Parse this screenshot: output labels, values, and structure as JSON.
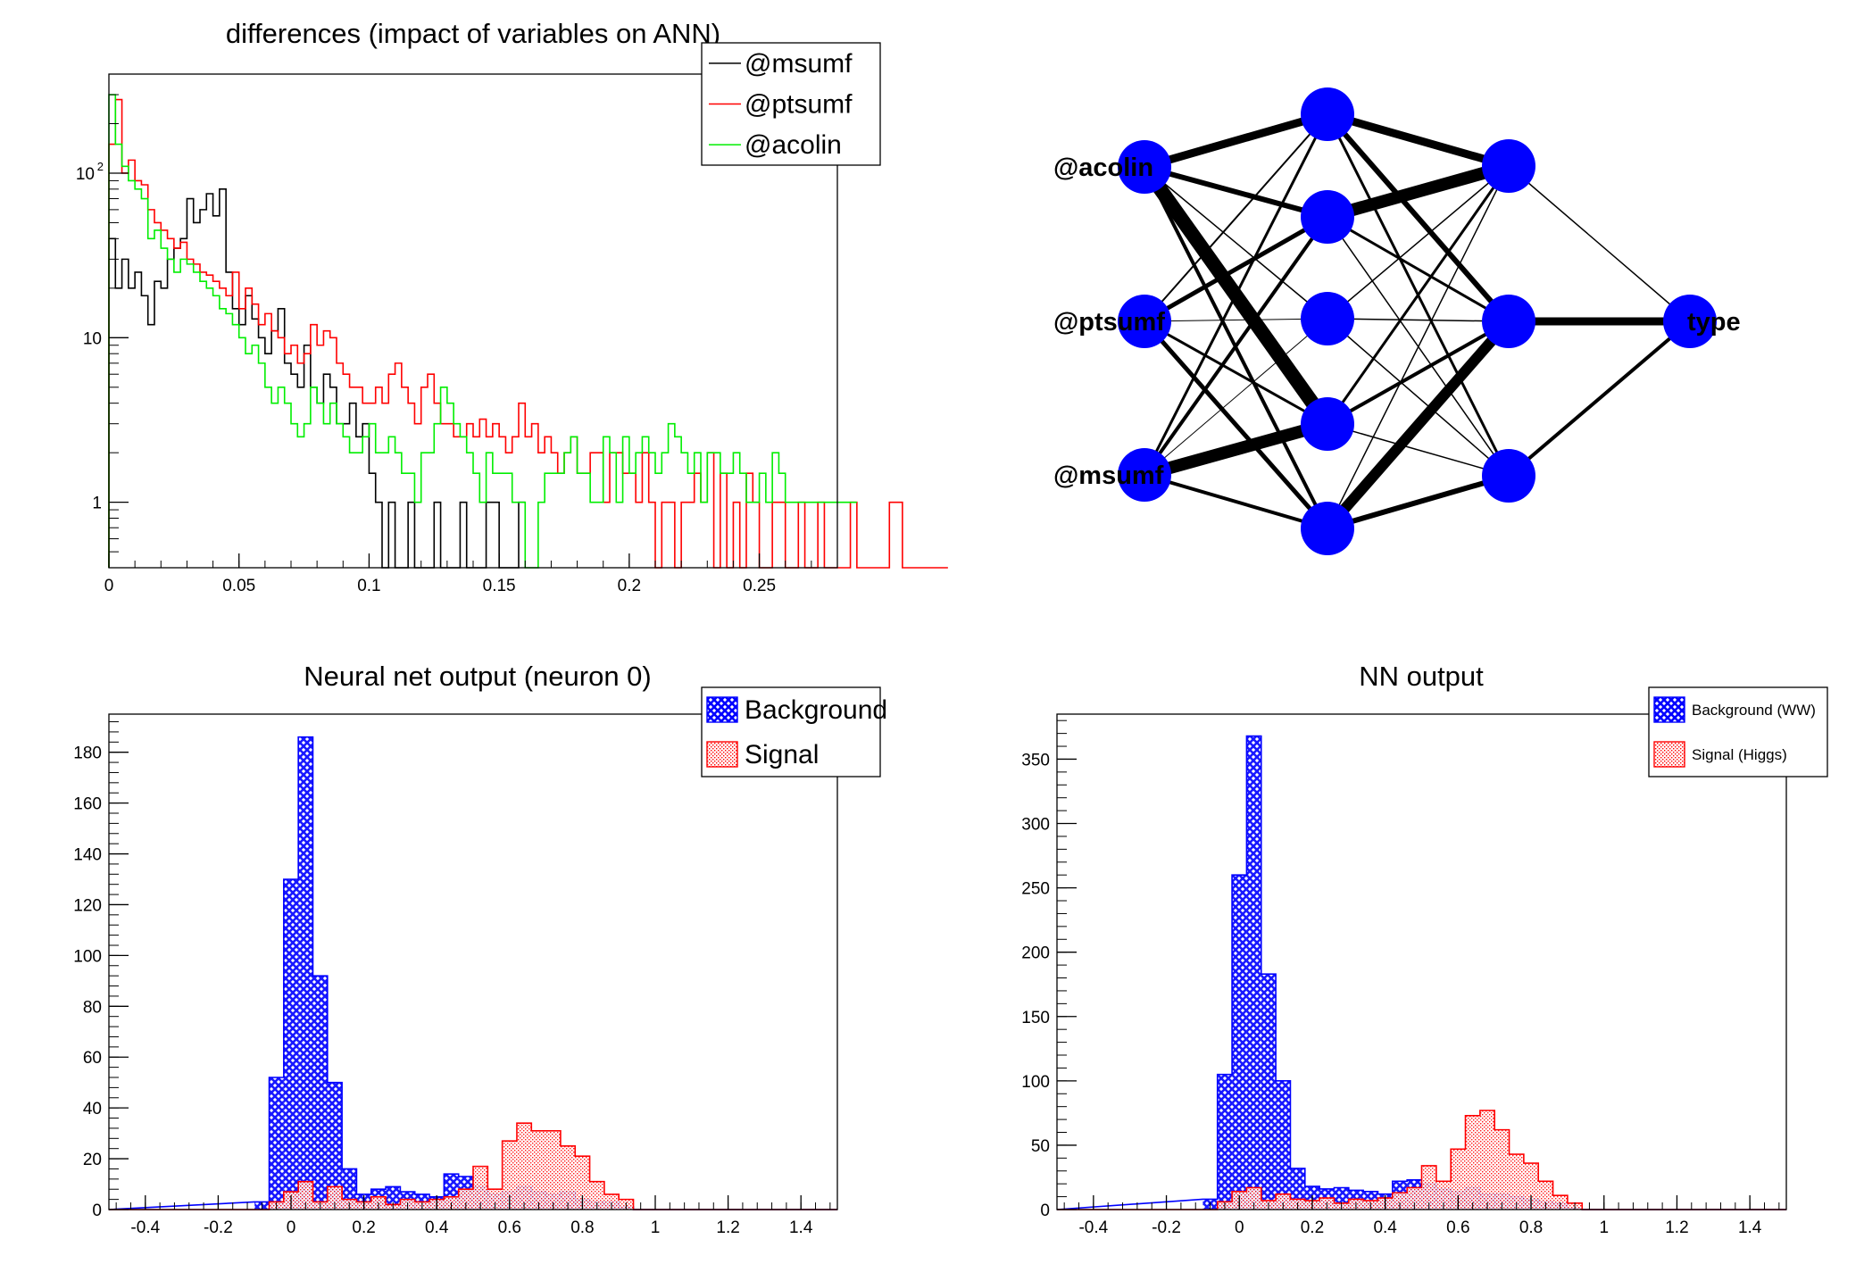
{
  "colors": {
    "msumf": "#000000",
    "ptsumf": "#ff0000",
    "acolin": "#00ee00",
    "background": "#0000ff",
    "signal": "#ff0000",
    "node": "#0000ff"
  },
  "chart_data": [
    {
      "id": "differences",
      "type": "histogram-step",
      "title": "differences (impact of variables on ANN)",
      "log_y": true,
      "xlim": [
        0,
        0.28
      ],
      "ylim": [
        0.4,
        400
      ],
      "x_ticks": [
        0,
        0.05,
        0.1,
        0.15,
        0.2,
        0.25
      ],
      "x_tick_labels": [
        "0",
        "0.05",
        "0.1",
        "0.15",
        "0.2",
        "0.25"
      ],
      "y_ticks": [
        1,
        10,
        100
      ],
      "y_tick_labels": [
        "1",
        "10",
        "10²"
      ],
      "legend": [
        "@msumf",
        "@ptsumf",
        "@acolin"
      ],
      "bin_width": 0.0025,
      "series": [
        {
          "name": "@msumf",
          "key": "msumf",
          "x_start": 0,
          "values": [
            40,
            20,
            30,
            20,
            25,
            18,
            12,
            22,
            20,
            30,
            35,
            40,
            70,
            50,
            60,
            75,
            55,
            80,
            25,
            15,
            12,
            18,
            13,
            10,
            8,
            11,
            15,
            7,
            6,
            5,
            9,
            5,
            4,
            6,
            5,
            3,
            3,
            4,
            2.5,
            3,
            1.5,
            1,
            0.4,
            1,
            0.4,
            0.4,
            1,
            0.4,
            0.4,
            0.4,
            1,
            0.4,
            0.4,
            0.4,
            1,
            0.4,
            0.4,
            0.4,
            1,
            1,
            0.4,
            0.4,
            0.4,
            1
          ]
        },
        {
          "name": "@ptsumf",
          "key": "ptsumf",
          "x_start": 0,
          "values": [
            150,
            280,
            100,
            120,
            90,
            85,
            60,
            50,
            45,
            40,
            35,
            38,
            30,
            28,
            25,
            24,
            22,
            20,
            18,
            25,
            15,
            20,
            16,
            12,
            14,
            11,
            10,
            8,
            9,
            7,
            8,
            12,
            9,
            11,
            10,
            7,
            6,
            5,
            5,
            4,
            4,
            5,
            4,
            6,
            7,
            5,
            4,
            3,
            5,
            6,
            4,
            3,
            3,
            2.5,
            2.5,
            3,
            2.5,
            3.2,
            2.5,
            3,
            2.5,
            2,
            2.5,
            4,
            2.5,
            3,
            2,
            2.5,
            2,
            1.5,
            2,
            2.5,
            1.5,
            1.5,
            2,
            2,
            1,
            2,
            2,
            1.5,
            1.5,
            1,
            2,
            1,
            0.4,
            1,
            1,
            0.4,
            1,
            1,
            1.5,
            1,
            2,
            0.4,
            1.5,
            0.4,
            1,
            0.4,
            1.5,
            1,
            0.4,
            0.4,
            1,
            1,
            0.4,
            0.4,
            1,
            0.4,
            0.4,
            1,
            0.4,
            0.4,
            0.4,
            0.4,
            1,
            0.4,
            0.4,
            0.4,
            0.4,
            0.4,
            1,
            1,
            0.4,
            0.4,
            0.4,
            0.4,
            0.4,
            0.4,
            0.4
          ]
        },
        {
          "name": "@acolin",
          "key": "acolin",
          "x_start": 0,
          "values": [
            300,
            150,
            110,
            90,
            80,
            70,
            40,
            45,
            35,
            30,
            25,
            30,
            28,
            25,
            22,
            20,
            18,
            15,
            14,
            12,
            10,
            8,
            9,
            7,
            5,
            4,
            5,
            4,
            3,
            2.5,
            3,
            5,
            4,
            3,
            4,
            3,
            2.5,
            2,
            2,
            2.5,
            3,
            2,
            2,
            2.5,
            2,
            1.5,
            1.5,
            1,
            2,
            2,
            3,
            5,
            4,
            3,
            2.5,
            2,
            1.5,
            1,
            2,
            1.5,
            1.5,
            1.5,
            1,
            1,
            0.4,
            0.4,
            1,
            1.5,
            1.5,
            1.5,
            2,
            2.5,
            1.5,
            1.5,
            1,
            1,
            2.5,
            2,
            1,
            2.5,
            1.5,
            2,
            2.5,
            2,
            1.5,
            2,
            3,
            2.5,
            2,
            1.5,
            2,
            1,
            2,
            2,
            1.5,
            1.5,
            2,
            1.5,
            1,
            1,
            1.5,
            1,
            2,
            1.5,
            1,
            1,
            1,
            1,
            1,
            1,
            1,
            1,
            1,
            1,
            1
          ]
        }
      ]
    },
    {
      "id": "nn-output-0",
      "type": "histogram-filled",
      "title": "Neural net output (neuron 0)",
      "xlim": [
        -0.5,
        1.5
      ],
      "ylim": [
        0,
        195
      ],
      "x_ticks": [
        -0.4,
        -0.2,
        0,
        0.2,
        0.4,
        0.6,
        0.8,
        1,
        1.2,
        1.4
      ],
      "x_tick_labels": [
        "-0.4",
        "-0.2",
        "0",
        "0.2",
        "0.4",
        "0.6",
        "0.8",
        "1",
        "1.2",
        "1.4"
      ],
      "y_ticks": [
        0,
        20,
        40,
        60,
        80,
        100,
        120,
        140,
        160,
        180
      ],
      "y_tick_labels": [
        "0",
        "20",
        "40",
        "60",
        "80",
        "100",
        "120",
        "140",
        "160",
        "180"
      ],
      "legend": [
        "Background",
        "Signal"
      ],
      "bin_width": 0.04,
      "series": [
        {
          "name": "Background",
          "key": "background",
          "x_start": -0.1,
          "values": [
            3,
            52,
            130,
            186,
            92,
            50,
            16,
            6,
            8,
            9,
            7,
            6,
            5,
            14,
            13,
            9,
            6,
            7,
            9,
            7,
            6,
            7,
            4,
            3,
            3,
            1,
            0,
            0,
            0,
            0
          ]
        },
        {
          "name": "Signal",
          "key": "signal",
          "x_start": -0.1,
          "values": [
            0,
            3,
            7,
            11,
            3,
            9,
            4,
            3,
            5,
            2,
            4,
            3,
            4,
            5,
            8,
            17,
            8,
            27,
            34,
            31,
            31,
            25,
            21,
            11,
            6,
            4,
            0,
            0,
            0,
            0
          ]
        }
      ]
    },
    {
      "id": "nn-output",
      "type": "histogram-filled",
      "title": "NN output",
      "xlim": [
        -0.5,
        1.5
      ],
      "ylim": [
        0,
        385
      ],
      "x_ticks": [
        -0.4,
        -0.2,
        0,
        0.2,
        0.4,
        0.6,
        0.8,
        1,
        1.2,
        1.4
      ],
      "x_tick_labels": [
        "-0.4",
        "-0.2",
        "0",
        "0.2",
        "0.4",
        "0.6",
        "0.8",
        "1",
        "1.2",
        "1.4"
      ],
      "y_ticks": [
        0,
        50,
        100,
        150,
        200,
        250,
        300,
        350
      ],
      "y_tick_labels": [
        "0",
        "50",
        "100",
        "150",
        "200",
        "250",
        "300",
        "350"
      ],
      "legend": [
        "Background (WW)",
        "Signal (Higgs)"
      ],
      "bin_width": 0.04,
      "series": [
        {
          "name": "Background (WW)",
          "key": "background",
          "x_start": -0.1,
          "values": [
            8,
            105,
            260,
            368,
            183,
            100,
            32,
            18,
            16,
            17,
            15,
            14,
            12,
            22,
            23,
            20,
            16,
            14,
            17,
            12,
            12,
            10,
            8,
            6,
            5,
            1,
            0,
            0,
            0,
            0
          ]
        },
        {
          "name": "Signal (Higgs)",
          "key": "signal",
          "x_start": -0.1,
          "values": [
            0,
            6,
            14,
            17,
            7,
            12,
            8,
            7,
            9,
            5,
            8,
            7,
            9,
            13,
            17,
            34,
            22,
            47,
            73,
            77,
            62,
            43,
            36,
            22,
            11,
            5,
            0,
            0,
            0,
            0
          ]
        }
      ]
    }
  ],
  "network": {
    "input_labels": [
      "@acolin",
      "@ptsumf",
      "@msumf"
    ],
    "output_label": "type"
  }
}
